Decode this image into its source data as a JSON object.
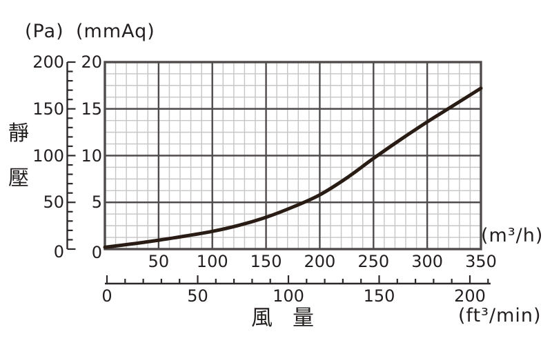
{
  "colors": {
    "background": "#ffffff",
    "curve": "#281c15",
    "grid_major": "#4f4b4b",
    "grid_minor": "#c6c4c4",
    "axis": "#2c2828",
    "text": "#241f1f"
  },
  "chart_data": {
    "type": "line",
    "ylabel": "靜壓",
    "xlabel": "風量",
    "grid": {
      "major": true,
      "minor": true
    },
    "y_axes": {
      "pa": {
        "unit": "(Pa)",
        "range": [
          0,
          200
        ],
        "ticks": [
          200,
          150,
          100,
          50,
          0
        ],
        "minor_step": 10
      },
      "mmaq": {
        "unit": "(mmAq)",
        "range": [
          0,
          20
        ],
        "ticks": [
          20,
          15,
          10,
          5,
          0
        ],
        "major_step": 5
      }
    },
    "x_axes": {
      "m3h": {
        "unit": "(m³/h)",
        "range": [
          0,
          350
        ],
        "ticks": [
          50,
          100,
          150,
          200,
          250,
          300,
          350
        ],
        "minor_step": 10
      },
      "cfm": {
        "unit": "(ft³/min)",
        "range": [
          0,
          210
        ],
        "ticks": [
          0,
          50,
          100,
          150,
          200
        ],
        "minor_step": 10
      }
    },
    "series": [
      {
        "name": "static-pressure-curve",
        "x_m3h": [
          0,
          25,
          50,
          75,
          100,
          125,
          150,
          175,
          200,
          225,
          250,
          275,
          300,
          325,
          350
        ],
        "y_mmaq": [
          0.2,
          0.55,
          0.95,
          1.4,
          1.9,
          2.55,
          3.4,
          4.5,
          5.8,
          7.6,
          9.7,
          11.7,
          13.6,
          15.4,
          17.2
        ]
      }
    ]
  }
}
